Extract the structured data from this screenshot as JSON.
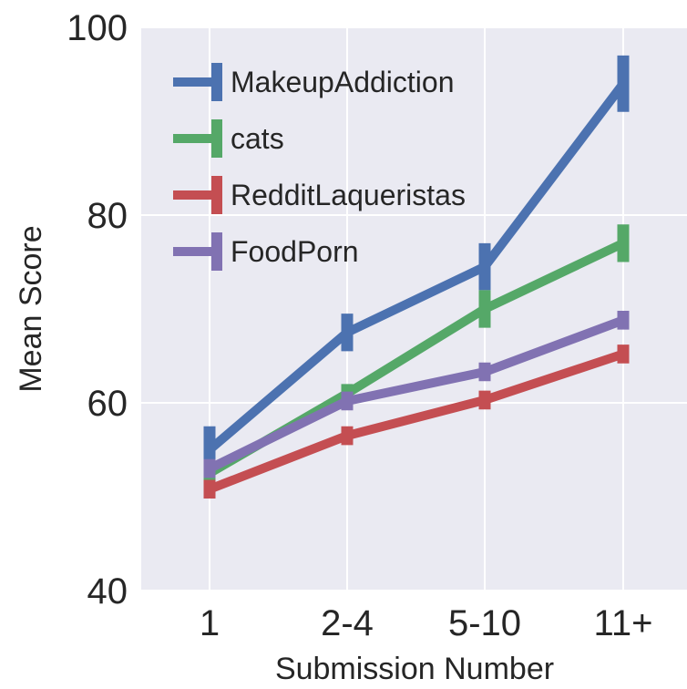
{
  "chart_data": {
    "type": "line",
    "title": "",
    "xlabel": "Submission Number",
    "ylabel": "Mean Score",
    "categories": [
      "1",
      "2-4",
      "5-10",
      "11+"
    ],
    "ylim": [
      40,
      100
    ],
    "yticks": [
      "40",
      "60",
      "80",
      "100"
    ],
    "grid": true,
    "legend_position": "top-left",
    "series": [
      {
        "name": "MakeupAddiction",
        "color": "#4c72b0",
        "values": [
          55,
          67.5,
          74.5,
          94
        ],
        "errors": [
          2.5,
          2,
          2.5,
          3
        ]
      },
      {
        "name": "cats",
        "color": "#55a868",
        "values": [
          52.5,
          61,
          70,
          77
        ],
        "errors": [
          1,
          1,
          2,
          2
        ]
      },
      {
        "name": "RedditLaqueristas",
        "color": "#c44e52",
        "values": [
          50.8,
          56.5,
          60.3,
          65.2
        ],
        "errors": [
          1,
          1,
          1,
          1
        ]
      },
      {
        "name": "FoodPorn",
        "color": "#8172b2",
        "values": [
          53,
          60.2,
          63.3,
          68.8
        ],
        "errors": [
          1,
          1,
          1,
          1
        ]
      }
    ]
  }
}
